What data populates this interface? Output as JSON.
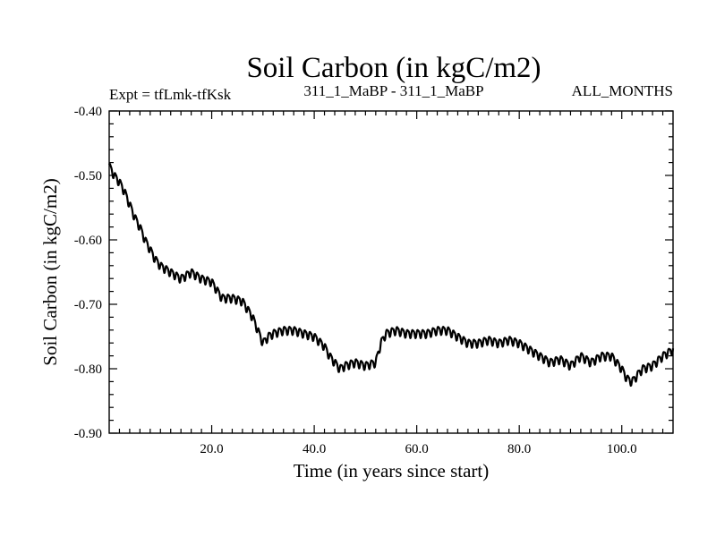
{
  "chart_data": {
    "type": "line",
    "title": "Soil Carbon (in kgC/m2)",
    "subtitle_left": "Expt = tfLmk-tfKsk",
    "subtitle_center": "311_1_MaBP - 311_1_MaBP",
    "subtitle_right": "ALL_MONTHS",
    "xlabel": "Time (in years since start)",
    "ylabel": "Soil Carbon (in kgC/m2)",
    "xlim": [
      0,
      110
    ],
    "ylim": [
      -0.9,
      -0.4
    ],
    "x_ticks": [
      20,
      40,
      60,
      80,
      100
    ],
    "x_tick_labels": [
      "20.0",
      "40.0",
      "60.0",
      "80.0",
      "100.0"
    ],
    "y_ticks": [
      -0.4,
      -0.5,
      -0.6,
      -0.7,
      -0.8,
      -0.9
    ],
    "y_tick_labels": [
      "-0.40",
      "-0.50",
      "-0.60",
      "-0.70",
      "-0.80",
      "-0.90"
    ],
    "seasonal_amplitude": 0.006,
    "series": [
      {
        "name": "Soil Carbon",
        "color": "#000000",
        "x": [
          0,
          1,
          2,
          3,
          4,
          5,
          6,
          7,
          8,
          9,
          10,
          12,
          14,
          16,
          18,
          20,
          22,
          24,
          26,
          28,
          29,
          30,
          31,
          32,
          34,
          36,
          38,
          40,
          42,
          43,
          44,
          45,
          46,
          48,
          50,
          52,
          53,
          54,
          56,
          58,
          60,
          62,
          64,
          66,
          68,
          70,
          72,
          74,
          76,
          78,
          80,
          82,
          84,
          86,
          88,
          90,
          92,
          94,
          96,
          98,
          100,
          101,
          102,
          103,
          104,
          106,
          108,
          110
        ],
        "y": [
          -0.485,
          -0.5,
          -0.51,
          -0.525,
          -0.545,
          -0.565,
          -0.58,
          -0.6,
          -0.615,
          -0.63,
          -0.64,
          -0.65,
          -0.66,
          -0.65,
          -0.66,
          -0.665,
          -0.69,
          -0.69,
          -0.695,
          -0.72,
          -0.74,
          -0.76,
          -0.75,
          -0.745,
          -0.74,
          -0.74,
          -0.745,
          -0.75,
          -0.765,
          -0.78,
          -0.79,
          -0.8,
          -0.795,
          -0.79,
          -0.795,
          -0.79,
          -0.76,
          -0.745,
          -0.74,
          -0.745,
          -0.745,
          -0.745,
          -0.74,
          -0.74,
          -0.75,
          -0.76,
          -0.76,
          -0.755,
          -0.76,
          -0.755,
          -0.76,
          -0.77,
          -0.78,
          -0.79,
          -0.785,
          -0.795,
          -0.78,
          -0.79,
          -0.78,
          -0.78,
          -0.8,
          -0.815,
          -0.82,
          -0.81,
          -0.8,
          -0.795,
          -0.78,
          -0.77
        ]
      }
    ]
  }
}
